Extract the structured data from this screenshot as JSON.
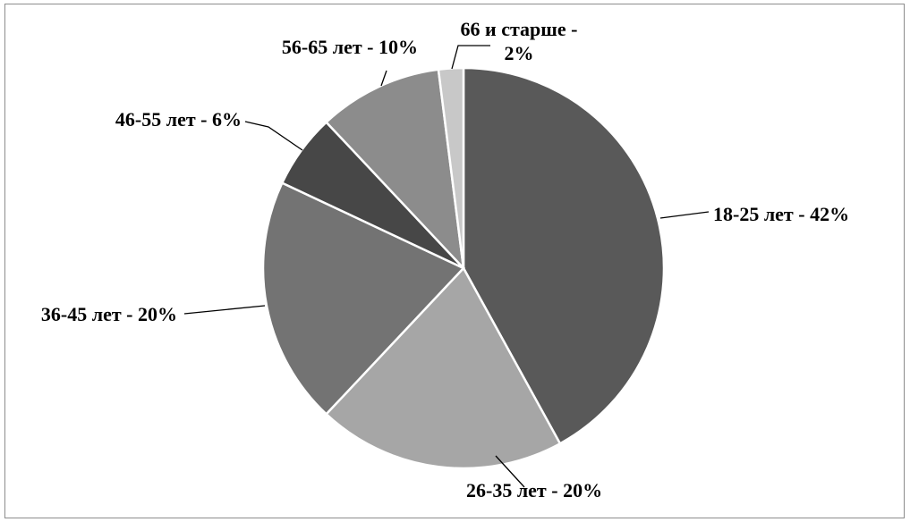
{
  "chart_data": {
    "type": "pie",
    "categories": [
      "18-25 лет",
      "26-35 лет",
      "36-45 лет",
      "46-55 лет",
      "56-65 лет",
      "66 и старше"
    ],
    "values": [
      42,
      20,
      20,
      6,
      10,
      2
    ],
    "unit": "%",
    "data_labels": [
      [
        "18-25 лет - 42%"
      ],
      [
        "26-35 лет - 20%"
      ],
      [
        "36-45 лет - 20%"
      ],
      [
        "46-55 лет - 6%"
      ],
      [
        "56-65 лет - 10%"
      ],
      [
        "66 и старше -",
        "2%"
      ]
    ],
    "colors": [
      "#595959",
      "#a6a6a6",
      "#737373",
      "#474747",
      "#8c8c8c",
      "#c8c8c8"
    ],
    "start_angle_deg": 0,
    "direction": "clockwise",
    "legend": "none",
    "border": true
  }
}
